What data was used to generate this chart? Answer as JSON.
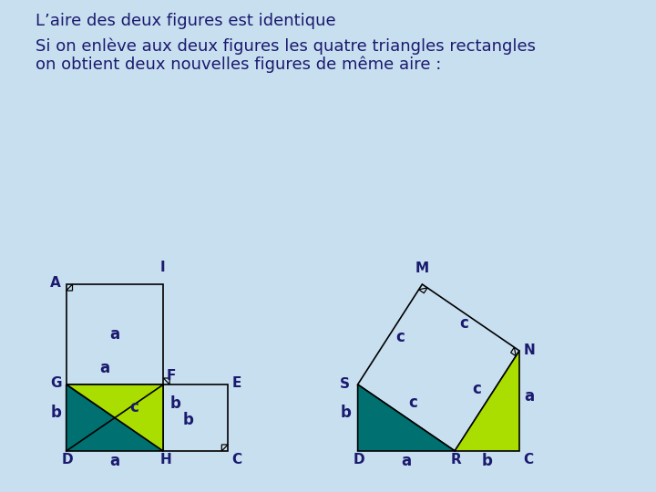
{
  "bg_color": "#c8dff0",
  "title1": "L’aire des deux figures est identique",
  "title2": "Si on enlève aux deux figures les quatre triangles rectangles",
  "title3": "on obtient deux nouvelles figures de même aire :",
  "text_color": "#1a1a6e",
  "green_dark": "#007070",
  "green_light": "#aadd00",
  "white_fill": "#ffffff",
  "label_fs": 11,
  "dim_fs": 12,
  "title_fs": 13
}
